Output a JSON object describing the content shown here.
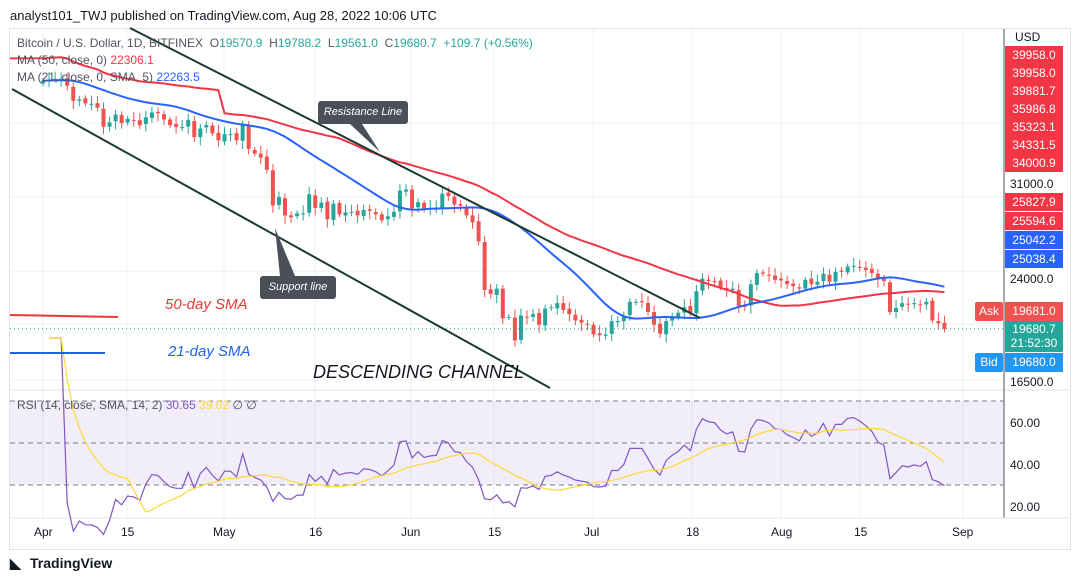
{
  "header": {
    "published": "analyst101_TWJ published on TradingView.com, Aug 28, 2022 10:06 UTC"
  },
  "legend": {
    "symbol": "Bitcoin / U.S. Dollar, 1D, BITFINEX",
    "o_label": "O",
    "o": "19570.9",
    "h_label": "H",
    "h": "19788.2",
    "l_label": "L",
    "l": "19561.0",
    "c_label": "C",
    "c": "19680.7",
    "change": "+109.7 (+0.56%)",
    "ma50_label": "MA (50, close, 0)",
    "ma50_value": "22306.1",
    "ma21_label": "MA (21, close, 0, SMA, 5)",
    "ma21_value": "22263.5",
    "rsi_label": "RSI (14, close, SMA, 14, 2)",
    "rsi_value": "30.65",
    "rsi_sma_value": "39.02",
    "na1": "∅",
    "na2": "∅"
  },
  "price_axis": {
    "currency": "USD",
    "ticks": [
      "31000.0",
      "24000.0",
      "16500.0"
    ],
    "red_labels": [
      "39958.0",
      "39958.0",
      "39881.7",
      "35986.8",
      "35323.1",
      "34331.5",
      "34000.9",
      "25827.9",
      "25594.6"
    ],
    "blue_labels": [
      "25042.2",
      "25038.4"
    ],
    "ask_label": "Ask",
    "ask": "19681.0",
    "last": "19680.7",
    "countdown": "21:52:30",
    "bid_label": "Bid",
    "bid": "19680.0"
  },
  "rsi_axis": {
    "ticks": [
      "60.00",
      "40.00",
      "20.00"
    ]
  },
  "time_axis": [
    "Apr",
    "15",
    "May",
    "16",
    "Jun",
    "15",
    "Jul",
    "18",
    "Aug",
    "15",
    "Sep"
  ],
  "annotations": {
    "resistance": "Resistance Line",
    "support": "Support line",
    "sma50": "50-day SMA",
    "sma21": "21-day SMA",
    "channel": "DESCENDING CHANNEL"
  },
  "footer": {
    "brand": "TradingView"
  },
  "colors": {
    "up": "#26a69a",
    "down": "#ef5350",
    "ma50": "#f23645",
    "ma21": "#2962ff",
    "rsi": "#7e57c2",
    "rsi_sma": "#fdd835"
  },
  "chart_data": {
    "type": "candlestick",
    "scale": "log",
    "ylim": [
      16000,
      48000
    ],
    "x_start": "2022-04-01",
    "x_end": "2022-08-28",
    "closes": [
      46300,
      46400,
      46600,
      46600,
      45500,
      43200,
      43400,
      42800,
      42750,
      42200,
      39500,
      40100,
      41200,
      40000,
      40600,
      40400,
      39700,
      40800,
      41500,
      41400,
      40500,
      39700,
      39450,
      39450,
      40450,
      38100,
      39250,
      39750,
      38600,
      37700,
      38500,
      38500,
      37700,
      39700,
      36600,
      36000,
      35500,
      34050,
      30100,
      31000,
      29100,
      28900,
      29300,
      29300,
      31300,
      29850,
      30400,
      28700,
      30300,
      29200,
      29400,
      29450,
      29100,
      29650,
      29550,
      29200,
      28600,
      29000,
      29450,
      31700,
      31800,
      29800,
      30450,
      29700,
      29850,
      29900,
      31350,
      31100,
      30200,
      30100,
      29100,
      28400,
      26600,
      22500,
      22200,
      22600,
      20400,
      20500,
      18900,
      20600,
      20500,
      20700,
      19950,
      21100,
      21200,
      21500,
      21000,
      20700,
      20250,
      20100,
      19950,
      19300,
      19250,
      19300,
      20200,
      20200,
      20550,
      21600,
      21600,
      21600,
      20850,
      19950,
      19350,
      20200,
      20550,
      20800,
      21200,
      20800,
      22400,
      23400,
      23200,
      23150,
      22700,
      22450,
      22600,
      21300,
      21250,
      22950,
      23850,
      23800,
      23650,
      23300,
      23250,
      22950,
      22800,
      22600,
      23300,
      22950,
      23150,
      23800,
      23150,
      23950,
      23950,
      24400,
      24450,
      24300,
      24100,
      23850,
      23350,
      23200,
      20850,
      21150,
      21500,
      21400,
      21500,
      21400,
      21600,
      20250,
      20050,
      19680
    ]
  }
}
